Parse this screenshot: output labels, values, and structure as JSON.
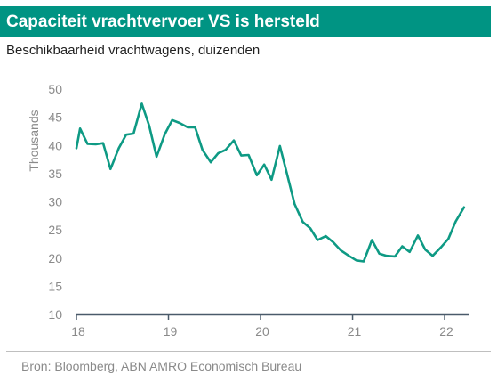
{
  "header": {
    "title": "Capaciteit vrachtvervoer VS is hersteld",
    "subtitle": "Beschikbaarheid vrachtwagens, duizenden"
  },
  "footer": {
    "source": "Bron: Bloomberg, ABN AMRO Economisch Bureau"
  },
  "colors": {
    "accent": "#009483",
    "line": "#0e9a84",
    "axis": "#4a5a6a",
    "muted_text": "#8a8a8a"
  },
  "chart_data": {
    "type": "line",
    "title": "Capaciteit vrachtvervoer VS is hersteld",
    "subtitle": "Beschikbaarheid vrachtwagens, duizenden",
    "xlabel": "",
    "ylabel": "Thousands",
    "ylim": [
      10,
      50
    ],
    "yticks": [
      10,
      15,
      20,
      25,
      30,
      35,
      40,
      45,
      50
    ],
    "xlim": [
      2018.0,
      2022.27
    ],
    "xticks": [
      {
        "value": 2018,
        "label": "18"
      },
      {
        "value": 2019,
        "label": "19"
      },
      {
        "value": 2020,
        "label": "20"
      },
      {
        "value": 2021,
        "label": "21"
      },
      {
        "value": 2022,
        "label": "22"
      }
    ],
    "grid": false,
    "legend": "none",
    "series": [
      {
        "x": [
          2018.0,
          2018.04,
          2018.12,
          2018.21,
          2018.29,
          2018.37,
          2018.46,
          2018.54,
          2018.62,
          2018.71,
          2018.79,
          2018.87,
          2018.96,
          2019.04,
          2019.12,
          2019.21,
          2019.29,
          2019.37,
          2019.46,
          2019.54,
          2019.62,
          2019.71,
          2019.79,
          2019.87,
          2019.96,
          2020.04,
          2020.12,
          2020.21,
          2020.29,
          2020.37,
          2020.46,
          2020.54,
          2020.62,
          2020.71,
          2020.79,
          2020.87,
          2020.96,
          2021.04,
          2021.12,
          2021.21,
          2021.29,
          2021.37,
          2021.46,
          2021.54,
          2021.62,
          2021.71,
          2021.79,
          2021.87,
          2021.96,
          2022.04,
          2022.12,
          2022.21
        ],
        "values": [
          39.5,
          43.0,
          40.3,
          40.2,
          40.4,
          35.8,
          39.5,
          41.9,
          42.1,
          47.4,
          43.5,
          38.0,
          42.0,
          44.5,
          44.0,
          43.2,
          43.2,
          39.2,
          37.0,
          38.6,
          39.2,
          40.9,
          38.2,
          38.3,
          34.7,
          36.6,
          33.9,
          39.9,
          34.8,
          29.6,
          26.4,
          25.3,
          23.2,
          23.9,
          22.8,
          21.4,
          20.4,
          19.6,
          19.4,
          23.2,
          20.8,
          20.4,
          20.3,
          22.1,
          21.1,
          24.0,
          21.5,
          20.4,
          21.9,
          23.4,
          26.5,
          29.0
        ]
      }
    ]
  }
}
